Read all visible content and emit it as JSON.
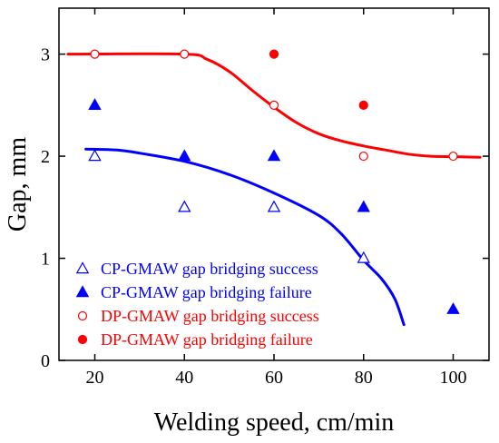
{
  "chart_data": {
    "type": "scatter",
    "title": "",
    "xlabel": "Welding speed, cm/min",
    "ylabel": "Gap, mm",
    "xlim": [
      12,
      108
    ],
    "ylim": [
      0,
      3.45
    ],
    "xticks": [
      20,
      40,
      60,
      80,
      100
    ],
    "yticks": [
      0,
      1,
      2,
      3
    ],
    "grid": false,
    "legend_position": "bottom-left",
    "series": [
      {
        "name": "CP-GMAW gap bridging success",
        "marker": "triangle-open",
        "color": "#0000ff",
        "points": [
          [
            20,
            2.0
          ],
          [
            40,
            1.5
          ],
          [
            60,
            1.5
          ],
          [
            80,
            1.0
          ]
        ]
      },
      {
        "name": "CP-GMAW gap bridging failure",
        "marker": "triangle-filled",
        "color": "#0000ff",
        "points": [
          [
            20,
            2.5
          ],
          [
            40,
            2.0
          ],
          [
            60,
            2.0
          ],
          [
            80,
            1.5
          ],
          [
            100,
            0.5
          ]
        ]
      },
      {
        "name": "DP-GMAW gap bridging success",
        "marker": "circle-open",
        "color": "#ff0000",
        "points": [
          [
            20,
            3.0
          ],
          [
            40,
            3.0
          ],
          [
            60,
            2.5
          ],
          [
            80,
            2.0
          ],
          [
            100,
            2.0
          ]
        ]
      },
      {
        "name": "DP-GMAW gap bridging failure",
        "marker": "circle-filled",
        "color": "#ff0000",
        "points": [
          [
            60,
            3.0
          ],
          [
            80,
            2.5
          ]
        ]
      }
    ],
    "curves": [
      {
        "color": "#0000ff",
        "points": [
          [
            18,
            2.07
          ],
          [
            25,
            2.06
          ],
          [
            30,
            2.03
          ],
          [
            40,
            1.95
          ],
          [
            50,
            1.82
          ],
          [
            60,
            1.64
          ],
          [
            70,
            1.42
          ],
          [
            75,
            1.24
          ],
          [
            80,
            0.98
          ],
          [
            84,
            0.8
          ],
          [
            87,
            0.6
          ],
          [
            89,
            0.35
          ]
        ]
      },
      {
        "color": "#ff0000",
        "points": [
          [
            14,
            3.0
          ],
          [
            40,
            3.0
          ],
          [
            45,
            2.95
          ],
          [
            50,
            2.83
          ],
          [
            55,
            2.65
          ],
          [
            60,
            2.48
          ],
          [
            65,
            2.33
          ],
          [
            70,
            2.22
          ],
          [
            75,
            2.15
          ],
          [
            80,
            2.1
          ],
          [
            85,
            2.06
          ],
          [
            90,
            2.02
          ],
          [
            95,
            2.0
          ],
          [
            100,
            1.995
          ],
          [
            106,
            1.99
          ]
        ]
      }
    ]
  }
}
